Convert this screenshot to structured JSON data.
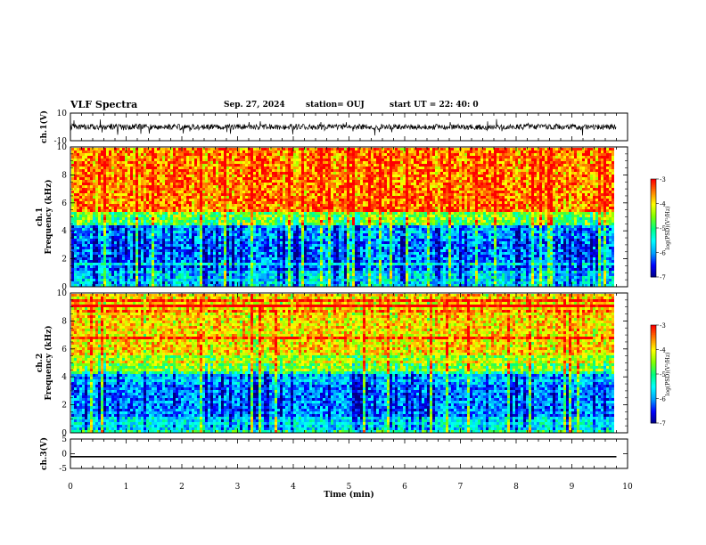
{
  "header": {
    "title": "VLF Spectra",
    "date": "Sep. 27, 2024",
    "station": "station= OUJ",
    "start_ut": "start  UT =   22: 40: 0"
  },
  "chart_data": [
    {
      "panel": "ch1-waveform",
      "type": "line",
      "ylabel": "ch.1(V)",
      "ylim": [
        -10,
        10
      ],
      "yticks": [
        "10",
        "-10"
      ],
      "baseline": 0,
      "noise_amplitude": 2
    },
    {
      "panel": "ch1-spectrogram",
      "type": "heatmap",
      "ylabel": "ch.1\nFrequency (kHz)",
      "ylim": [
        0,
        10
      ],
      "yticks": [
        "0",
        "2",
        "4",
        "6",
        "8",
        "10"
      ],
      "colorbar": {
        "label": "log(PSD)(V²/Hz)",
        "range": [
          -7,
          -3
        ],
        "ticks": [
          "-3",
          "-4",
          "-5",
          "-6",
          "-7"
        ]
      },
      "high_activity_cutoff_khz": 5
    },
    {
      "panel": "ch2-spectrogram",
      "type": "heatmap",
      "ylabel": "ch.2\nFrequency (kHz)",
      "ylim": [
        0,
        10
      ],
      "yticks": [
        "0",
        "2",
        "4",
        "6",
        "8",
        "10"
      ],
      "colorbar": {
        "label": "log(PSD)(V²/Hz)",
        "range": [
          -7,
          -3
        ],
        "ticks": [
          "-3",
          "-4",
          "-5",
          "-6",
          "-7"
        ]
      },
      "high_activity_cutoff_khz": 5
    },
    {
      "panel": "ch3-waveform",
      "type": "line",
      "ylabel": "ch.3(V)",
      "ylim": [
        -5,
        5
      ],
      "yticks": [
        "5",
        "0",
        "-5"
      ],
      "constant_value": -1
    }
  ],
  "xaxis": {
    "label": "Time (min)",
    "range": [
      0,
      10
    ],
    "ticks": [
      "0",
      "1",
      "2",
      "3",
      "4",
      "5",
      "6",
      "7",
      "8",
      "9",
      "10"
    ],
    "data_end_min": 9.8
  },
  "colors": {
    "spectrum": [
      "#000080",
      "#0000ff",
      "#00a0ff",
      "#00ffff",
      "#00ff80",
      "#80ff00",
      "#ffff00",
      "#ff8000",
      "#ff0000"
    ]
  }
}
